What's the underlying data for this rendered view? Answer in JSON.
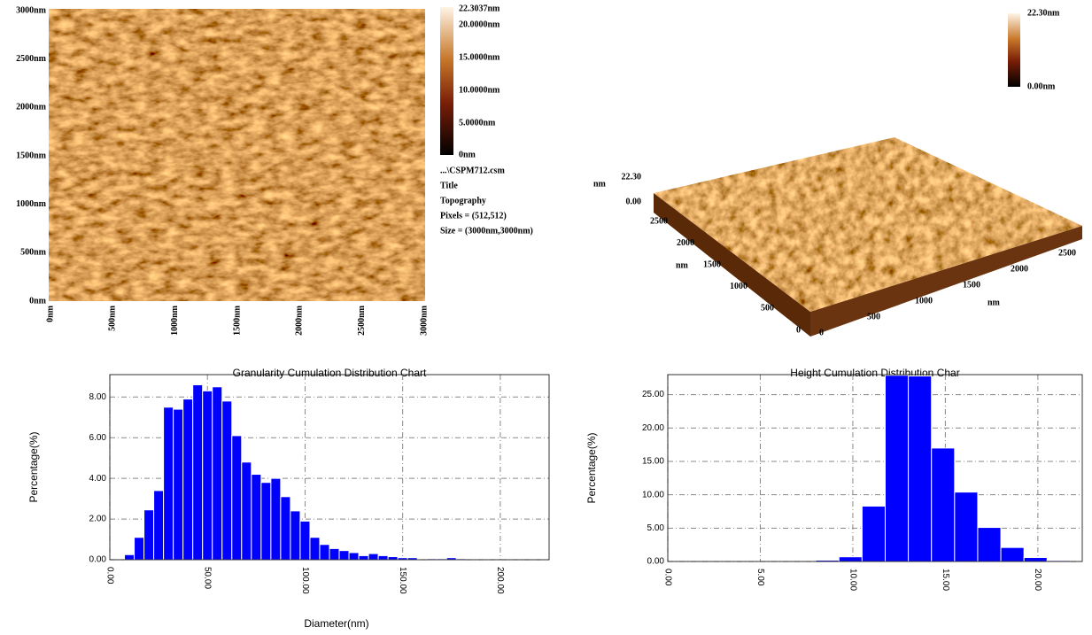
{
  "afm_image": {
    "y_labels": [
      "3000nm",
      "2500nm",
      "2000nm",
      "1500nm",
      "1000nm",
      "500nm",
      "0nm"
    ],
    "x_labels": [
      "0nm",
      "500nm",
      "1000nm",
      "1500nm",
      "2000nm",
      "2500nm",
      "3000nm"
    ],
    "colorbar_labels": [
      "22.3037nm",
      "20.0000nm",
      "15.0000nm",
      "10.0000nm",
      "5.0000nm",
      "0nm"
    ],
    "info": [
      "...\\CSPM712.csm",
      "Title",
      "Topography",
      "Pixels = (512,512)",
      "Size = (3000nm,3000nm)"
    ]
  },
  "afm_3d": {
    "colorbar_labels": [
      "22.30nm",
      "0.00nm"
    ],
    "z_labels": [
      "22.30",
      "0.00"
    ],
    "z_unit": "nm",
    "y_labels": [
      "2500",
      "2000",
      "1500",
      "1000",
      "500",
      "0"
    ],
    "y_unit": "nm",
    "x_labels": [
      "0",
      "500",
      "1000",
      "1500",
      "2000",
      "2500"
    ],
    "x_unit": "nm"
  },
  "chart_data": [
    {
      "type": "histogram",
      "title": "Granularity Cumulation Distribution  Chart",
      "y_label": "Percentage(%)",
      "x_label": "Diameter(nm)",
      "bins": [
        7.5,
        12.5,
        17.5,
        22.5,
        27.5,
        32.5,
        37.5,
        42.5,
        47.5,
        52.5,
        57.5,
        62.5,
        67.5,
        72.5,
        77.5,
        82.5,
        87.5,
        92.5,
        97.5,
        102.5,
        107.5,
        112.5,
        117.5,
        122.5,
        127.5,
        132.5,
        137.5,
        142.5,
        147.5,
        152.5,
        157.5,
        162.5,
        167.5,
        172.5,
        177.5,
        182.5
      ],
      "values": [
        0.25,
        1.1,
        2.45,
        3.4,
        7.5,
        7.4,
        7.9,
        8.6,
        8.3,
        8.5,
        7.8,
        6.1,
        4.8,
        4.2,
        3.8,
        4.0,
        3.1,
        2.4,
        1.9,
        1.1,
        0.75,
        0.55,
        0.45,
        0.35,
        0.2,
        0.3,
        0.2,
        0.15,
        0.1,
        0.1,
        0,
        0.05,
        0.05,
        0.1,
        0.05
      ],
      "color": "#0000ff",
      "xlim": [
        0,
        225
      ],
      "ylim": [
        0,
        9.1
      ],
      "xticks": [
        {
          "value": 0,
          "label": "0.00"
        },
        {
          "value": 50,
          "label": "50.00"
        },
        {
          "value": 100,
          "label": "100.00"
        },
        {
          "value": 150,
          "label": "150.00"
        },
        {
          "value": 200,
          "label": "200.00"
        }
      ],
      "yticks": [
        {
          "value": 0,
          "label": "0.00"
        },
        {
          "value": 2,
          "label": "2.00"
        },
        {
          "value": 4,
          "label": "4.00"
        },
        {
          "value": 6,
          "label": "6.00"
        },
        {
          "value": 8,
          "label": "8.00"
        }
      ],
      "grid": true
    },
    {
      "type": "histogram",
      "title": "Height Cumulation Distribution Char",
      "y_label": "Percentage(%)",
      "bins": [
        8.0,
        9.25,
        10.5,
        11.75,
        13.0,
        14.25,
        15.5,
        16.75,
        18.0,
        19.25,
        20.5,
        21.75
      ],
      "values": [
        0.2,
        0.7,
        8.3,
        27.9,
        27.8,
        17.0,
        10.4,
        5.1,
        2.1,
        0.6,
        0.15
      ],
      "color": "#0000ff",
      "xlim": [
        0,
        22.4
      ],
      "ylim": [
        0,
        28
      ],
      "xticks": [
        {
          "value": 0,
          "label": "0.00"
        },
        {
          "value": 5,
          "label": "5.00"
        },
        {
          "value": 10,
          "label": "10.00"
        },
        {
          "value": 15,
          "label": "15.00"
        },
        {
          "value": 20,
          "label": "20.00"
        }
      ],
      "yticks": [
        {
          "value": 0,
          "label": "0.00"
        },
        {
          "value": 5,
          "label": "5.00"
        },
        {
          "value": 10,
          "label": "10.00"
        },
        {
          "value": 15,
          "label": "15.00"
        },
        {
          "value": 20,
          "label": "20.00"
        },
        {
          "value": 25,
          "label": "25.00"
        }
      ],
      "grid": true
    }
  ]
}
